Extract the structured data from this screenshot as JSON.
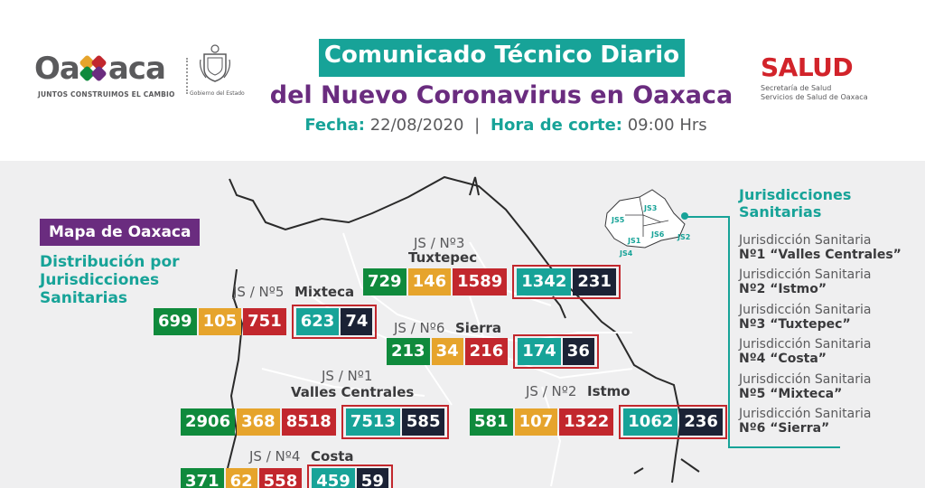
{
  "colors": {
    "green": "#0f8a3c",
    "yellow": "#e6a42c",
    "red": "#c2272d",
    "teal": "#17a398",
    "navy": "#1b2235",
    "purple": "#6a2c7f"
  },
  "header": {
    "logo": {
      "word": "Oaxaca",
      "slogan": "JUNTOS CONSTRUIMOS EL CAMBIO",
      "seal_caption": "Gobierno del Estado"
    },
    "title_line1": "Comunicado Técnico Diario",
    "title_line2": "del Nuevo Coronavirus en Oaxaca",
    "fecha_label": "Fecha:",
    "fecha_value": "22/08/2020",
    "separator": "|",
    "hora_label": "Hora de corte:",
    "hora_value": "09:00 Hrs",
    "salud": {
      "word": "SALUD",
      "sub1": "Secretaría de Salud",
      "sub2": "Servicios de Salud de Oaxaca"
    }
  },
  "map": {
    "title": "Mapa de Oaxaca",
    "subtitle": "Distribución por Jurisdicciones Sanitarias",
    "jurisdictions": [
      {
        "code": "JS / Nº3",
        "name": "Tuxtepec",
        "values": [
          "729",
          "146",
          "1589",
          "1342",
          "231"
        ]
      },
      {
        "code": "JS / Nº5",
        "name": "Mixteca",
        "values": [
          "699",
          "105",
          "751",
          "623",
          "74"
        ]
      },
      {
        "code": "JS / Nº6",
        "name": "Sierra",
        "values": [
          "213",
          "34",
          "216",
          "174",
          "36"
        ]
      },
      {
        "code": "JS / Nº1",
        "name": "Valles Centrales",
        "values": [
          "2906",
          "368",
          "8518",
          "7513",
          "585"
        ]
      },
      {
        "code": "JS / Nº2",
        "name": "Istmo",
        "values": [
          "581",
          "107",
          "1322",
          "1062",
          "236"
        ]
      },
      {
        "code": "JS / Nº4",
        "name": "Costa",
        "values": [
          "371",
          "62",
          "558",
          "459",
          "59"
        ]
      }
    ]
  },
  "sidebar": {
    "title": "Jurisdicciones Sanitarias",
    "mini_map_labels": [
      "JS5",
      "JS3",
      "JS1",
      "JS6",
      "JS2",
      "JS4"
    ],
    "items": [
      {
        "line1": "Jurisdicción Sanitaria",
        "line2": "Nº1 “Valles Centrales”"
      },
      {
        "line1": "Jurisdicción Sanitaria",
        "line2": "Nº2 “Istmo”"
      },
      {
        "line1": "Jurisdicción Sanitaria",
        "line2": "Nº3 “Tuxtepec”"
      },
      {
        "line1": "Jurisdicción Sanitaria",
        "line2": "Nº4 “Costa”"
      },
      {
        "line1": "Jurisdicción Sanitaria",
        "line2": "Nº5 “Mixteca”"
      },
      {
        "line1": "Jurisdicción Sanitaria",
        "line2": "Nº6 “Sierra”"
      }
    ]
  }
}
